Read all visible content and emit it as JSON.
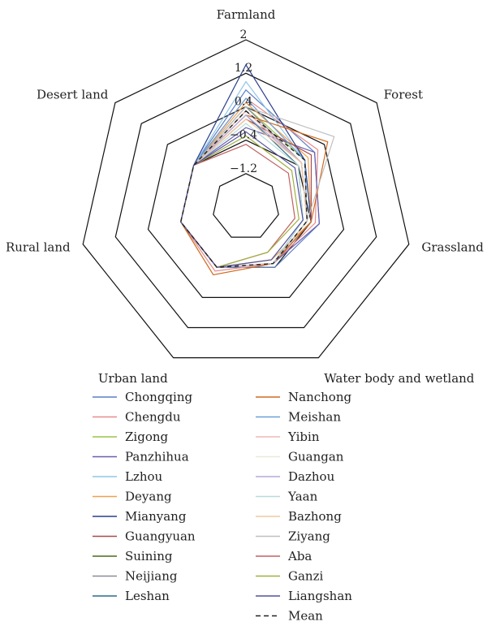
{
  "chart_data": {
    "type": "radar",
    "axes": [
      "Farmland",
      "Forest",
      "Grassland",
      "Water body and wetland",
      "Urban land",
      "Rural land",
      "Desert land"
    ],
    "ticks": [
      -1.2,
      -0.4,
      0.4,
      1.2,
      2
    ],
    "tick_labels": [
      "−1.2",
      "−0.4",
      "0.4",
      "1.2",
      "2"
    ],
    "range": [
      -2,
      2
    ],
    "grid": true,
    "legend_position": "bottom",
    "series": [
      {
        "name": "Chongqing",
        "color": "#5b7fc4",
        "dash": false,
        "values": [
          0.8,
          0.1,
          -0.2,
          -0.4,
          -0.4,
          -0.4,
          -0.4
        ]
      },
      {
        "name": "Chengdu",
        "color": "#e88a8a",
        "dash": false,
        "values": [
          0.6,
          0.2,
          -0.3,
          -0.5,
          -0.3,
          -0.4,
          -0.4
        ]
      },
      {
        "name": "Zigong",
        "color": "#9bc34a",
        "dash": false,
        "values": [
          0.4,
          -0.2,
          -0.4,
          -0.5,
          -0.4,
          -0.4,
          -0.4
        ]
      },
      {
        "name": "Panzhihua",
        "color": "#6a5fb0",
        "dash": false,
        "values": [
          -0.1,
          0.1,
          -0.2,
          -0.5,
          -0.4,
          -0.4,
          -0.4
        ]
      },
      {
        "name": "Lzhou",
        "color": "#8fc6e8",
        "dash": false,
        "values": [
          1.0,
          -0.2,
          -0.4,
          -0.5,
          -0.4,
          -0.4,
          -0.4
        ]
      },
      {
        "name": "Deyang",
        "color": "#f0a050",
        "dash": false,
        "values": [
          0.5,
          -0.1,
          -0.4,
          -0.6,
          -0.4,
          -0.4,
          -0.4
        ]
      },
      {
        "name": "Mianyang",
        "color": "#2c3e8c",
        "dash": false,
        "values": [
          1.4,
          -0.2,
          -0.4,
          -0.5,
          -0.4,
          -0.4,
          -0.4
        ]
      },
      {
        "name": "Guangyuan",
        "color": "#a84a4a",
        "dash": false,
        "values": [
          0.1,
          0.0,
          -0.4,
          -0.5,
          -0.4,
          -0.4,
          -0.4
        ]
      },
      {
        "name": "Suining",
        "color": "#4a6a1a",
        "dash": false,
        "values": [
          0.3,
          -0.3,
          -0.5,
          -0.5,
          -0.4,
          -0.4,
          -0.4
        ]
      },
      {
        "name": "Neijiang",
        "color": "#8a8a9a",
        "dash": false,
        "values": [
          0.4,
          -0.3,
          -0.5,
          -0.5,
          -0.4,
          -0.4,
          -0.4
        ]
      },
      {
        "name": "Leshan",
        "color": "#2a6a8a",
        "dash": false,
        "values": [
          0.2,
          -0.4,
          -0.6,
          -0.5,
          -0.4,
          -0.4,
          -0.4
        ]
      },
      {
        "name": "Nanchong",
        "color": "#d06a20",
        "dash": false,
        "values": [
          0.2,
          0.5,
          -0.4,
          -0.5,
          -0.2,
          -0.4,
          -0.4
        ]
      },
      {
        "name": "Meishan",
        "color": "#6aa0d8",
        "dash": false,
        "values": [
          0.6,
          -0.2,
          -0.5,
          -0.5,
          -0.4,
          -0.4,
          -0.4
        ]
      },
      {
        "name": "Yibin",
        "color": "#f0b8b8",
        "dash": false,
        "values": [
          0.3,
          -0.3,
          -0.5,
          -0.5,
          -0.4,
          -0.4,
          -0.4
        ]
      },
      {
        "name": "Guangan",
        "color": "#e8ecd8",
        "dash": false,
        "values": [
          0.2,
          -0.3,
          -0.5,
          -0.5,
          -0.4,
          -0.4,
          -0.4
        ]
      },
      {
        "name": "Dazhou",
        "color": "#b8a8d8",
        "dash": false,
        "values": [
          0.2,
          -0.3,
          -0.5,
          -0.5,
          -0.4,
          -0.4,
          -0.4
        ]
      },
      {
        "name": "Yaan",
        "color": "#b8dcd8",
        "dash": false,
        "values": [
          0.0,
          -0.4,
          -0.6,
          -0.5,
          -0.4,
          -0.4,
          -0.4
        ]
      },
      {
        "name": "Bazhong",
        "color": "#f0c8a0",
        "dash": false,
        "values": [
          0.1,
          -0.3,
          -0.5,
          -0.5,
          -0.4,
          -0.4,
          -0.4
        ]
      },
      {
        "name": "Ziyang",
        "color": "#c0c0c0",
        "dash": false,
        "values": [
          0.4,
          0.7,
          -0.5,
          -0.5,
          -0.4,
          -0.4,
          -0.4
        ]
      },
      {
        "name": "Aba",
        "color": "#c06060",
        "dash": false,
        "values": [
          -0.5,
          -0.7,
          -0.8,
          -0.8,
          -0.4,
          -0.4,
          -0.4
        ]
      },
      {
        "name": "Ganzi",
        "color": "#a0b040",
        "dash": false,
        "values": [
          -0.3,
          -0.6,
          -0.7,
          -0.8,
          -0.4,
          -0.4,
          -0.4
        ]
      },
      {
        "name": "Liangshan",
        "color": "#5050a0",
        "dash": false,
        "values": [
          -0.2,
          -0.5,
          -0.6,
          -0.6,
          -0.4,
          -0.4,
          -0.4
        ]
      },
      {
        "name": "Mean",
        "color": "#222222",
        "dash": true,
        "values": [
          0.3,
          -0.2,
          -0.5,
          -0.5,
          -0.4,
          -0.4,
          -0.4
        ]
      }
    ]
  }
}
